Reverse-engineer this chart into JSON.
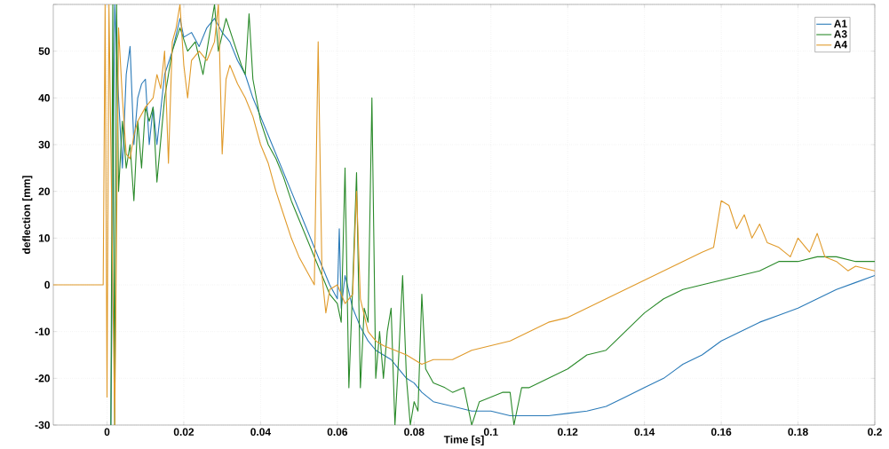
{
  "chart_data": {
    "type": "line",
    "xlabel": "Time [s]",
    "ylabel": "deflection [mm]",
    "xlim": [
      -0.014,
      0.2
    ],
    "ylim": [
      -30,
      60
    ],
    "xticks": [
      0,
      0.02,
      0.04,
      0.06,
      0.08,
      0.1,
      0.12,
      0.14,
      0.16,
      0.18,
      0.2
    ],
    "yticks": [
      -30,
      -20,
      -10,
      0,
      10,
      20,
      30,
      40,
      50,
      {
        "value": 60,
        "label": null
      }
    ],
    "grid": true,
    "legend": "top right",
    "line_style": "solid",
    "marker": "none",
    "series": [
      {
        "name": "A1",
        "color": "#2a7ab8",
        "x": [
          0.001,
          0.002,
          0.003,
          0.004,
          0.005,
          0.006,
          0.007,
          0.008,
          0.009,
          0.01,
          0.011,
          0.012,
          0.013,
          0.015,
          0.017,
          0.019,
          0.02,
          0.022,
          0.024,
          0.026,
          0.028,
          0.03,
          0.032,
          0.034,
          0.036,
          0.038,
          0.04,
          0.042,
          0.044,
          0.046,
          0.048,
          0.05,
          0.052,
          0.054,
          0.056,
          0.058,
          0.06,
          0.0605,
          0.061,
          0.062,
          0.064,
          0.066,
          0.068,
          0.07,
          0.072,
          0.074,
          0.076,
          0.078,
          0.08,
          0.082,
          0.085,
          0.09,
          0.095,
          0.1,
          0.105,
          0.11,
          0.115,
          0.12,
          0.125,
          0.13,
          0.135,
          0.14,
          0.145,
          0.15,
          0.155,
          0.16,
          0.165,
          0.17,
          0.175,
          0.18,
          0.185,
          0.19,
          0.195,
          0.2
        ],
        "values": [
          -30,
          60,
          40,
          25,
          45,
          51,
          30,
          40,
          43,
          44,
          30,
          38,
          30,
          45,
          50,
          57,
          53,
          54,
          51,
          55,
          57,
          54,
          52,
          48,
          45,
          40,
          36,
          32,
          28,
          24,
          20,
          16,
          12,
          8,
          4,
          0,
          -3,
          12,
          -5,
          2,
          -5,
          -9,
          -12,
          -14,
          -15,
          -16,
          -18,
          -20,
          -21,
          -23,
          -25,
          -26,
          -27,
          -27,
          -28,
          -28,
          -28,
          -27.5,
          -27,
          -26,
          -24,
          -22,
          -20,
          -17,
          -15,
          -12,
          -10,
          -8,
          -6.5,
          -5,
          -3,
          -1,
          0.5,
          2
        ]
      },
      {
        "name": "A3",
        "color": "#2a8a2a",
        "x": [
          0.001,
          0.0015,
          0.002,
          0.0025,
          0.003,
          0.004,
          0.005,
          0.006,
          0.007,
          0.008,
          0.009,
          0.01,
          0.011,
          0.012,
          0.013,
          0.015,
          0.017,
          0.019,
          0.021,
          0.023,
          0.025,
          0.027,
          0.028,
          0.029,
          0.031,
          0.033,
          0.035,
          0.036,
          0.037,
          0.038,
          0.04,
          0.042,
          0.044,
          0.046,
          0.048,
          0.05,
          0.052,
          0.054,
          0.056,
          0.058,
          0.06,
          0.061,
          0.062,
          0.063,
          0.064,
          0.065,
          0.066,
          0.067,
          0.068,
          0.069,
          0.07,
          0.071,
          0.072,
          0.073,
          0.074,
          0.075,
          0.076,
          0.077,
          0.078,
          0.079,
          0.08,
          0.081,
          0.082,
          0.083,
          0.085,
          0.088,
          0.09,
          0.093,
          0.095,
          0.097,
          0.1,
          0.103,
          0.105,
          0.106,
          0.108,
          0.11,
          0.115,
          0.12,
          0.125,
          0.13,
          0.135,
          0.14,
          0.145,
          0.15,
          0.155,
          0.16,
          0.165,
          0.17,
          0.175,
          0.18,
          0.185,
          0.19,
          0.195,
          0.2
        ],
        "values": [
          -30,
          60,
          -30,
          60,
          20,
          35,
          25,
          30,
          18,
          35,
          25,
          38,
          35,
          38,
          22,
          40,
          50,
          55,
          50,
          52,
          45,
          55,
          60,
          50,
          57,
          52,
          47,
          45,
          58,
          44,
          35,
          30,
          27,
          23,
          18,
          14,
          10,
          6,
          2,
          -2,
          -4,
          -8,
          25,
          -22,
          0,
          24,
          -22,
          -5,
          -8,
          40,
          -20,
          -10,
          -20,
          -10,
          -5,
          -30,
          -15,
          2,
          -20,
          -30,
          -25,
          -27,
          -2,
          -18,
          -21,
          -22,
          -23,
          -22,
          -30,
          -25,
          -24,
          -23,
          -23,
          -30,
          -22,
          -22,
          -20,
          -18,
          -15,
          -14,
          -10,
          -6,
          -3,
          -1,
          0,
          1,
          2,
          3,
          5,
          5,
          6,
          6,
          5,
          5
        ]
      },
      {
        "name": "A4",
        "color": "#e09a2a",
        "x": [
          -0.014,
          -0.005,
          -0.001,
          -0.0005,
          0,
          0.0005,
          0.002,
          0.003,
          0.004,
          0.005,
          0.006,
          0.007,
          0.008,
          0.01,
          0.012,
          0.013,
          0.014,
          0.015,
          0.016,
          0.017,
          0.018,
          0.019,
          0.02,
          0.021,
          0.022,
          0.024,
          0.026,
          0.028,
          0.029,
          0.03,
          0.031,
          0.032,
          0.034,
          0.036,
          0.038,
          0.04,
          0.042,
          0.044,
          0.046,
          0.048,
          0.05,
          0.052,
          0.054,
          0.055,
          0.056,
          0.057,
          0.058,
          0.06,
          0.062,
          0.064,
          0.065,
          0.066,
          0.068,
          0.07,
          0.072,
          0.075,
          0.078,
          0.08,
          0.082,
          0.085,
          0.09,
          0.095,
          0.1,
          0.105,
          0.11,
          0.115,
          0.12,
          0.125,
          0.13,
          0.135,
          0.14,
          0.145,
          0.15,
          0.155,
          0.158,
          0.16,
          0.162,
          0.164,
          0.166,
          0.168,
          0.17,
          0.172,
          0.175,
          0.178,
          0.18,
          0.183,
          0.185,
          0.187,
          0.19,
          0.193,
          0.195,
          0.2
        ],
        "values": [
          0,
          0,
          0,
          60,
          -24,
          60,
          -30,
          55,
          40,
          28,
          27,
          32,
          35,
          38,
          40,
          45,
          42,
          50,
          26,
          52,
          55,
          60,
          47,
          40,
          48,
          50,
          48,
          52,
          60,
          28,
          44,
          47,
          43,
          40,
          36,
          30,
          26,
          20,
          15,
          10,
          6,
          3,
          0,
          52,
          2,
          -6,
          -1,
          0,
          -4,
          -2,
          20,
          -3,
          -10,
          -12,
          -13,
          -14,
          -15,
          -16,
          -17,
          -16,
          -16,
          -14,
          -13,
          -12,
          -10,
          -8,
          -7,
          -5,
          -3,
          -1,
          1,
          3,
          5,
          7,
          8,
          18,
          17,
          12,
          15,
          10,
          13,
          9,
          8,
          6,
          10,
          7,
          11,
          6,
          5,
          3,
          4,
          3
        ]
      }
    ]
  }
}
